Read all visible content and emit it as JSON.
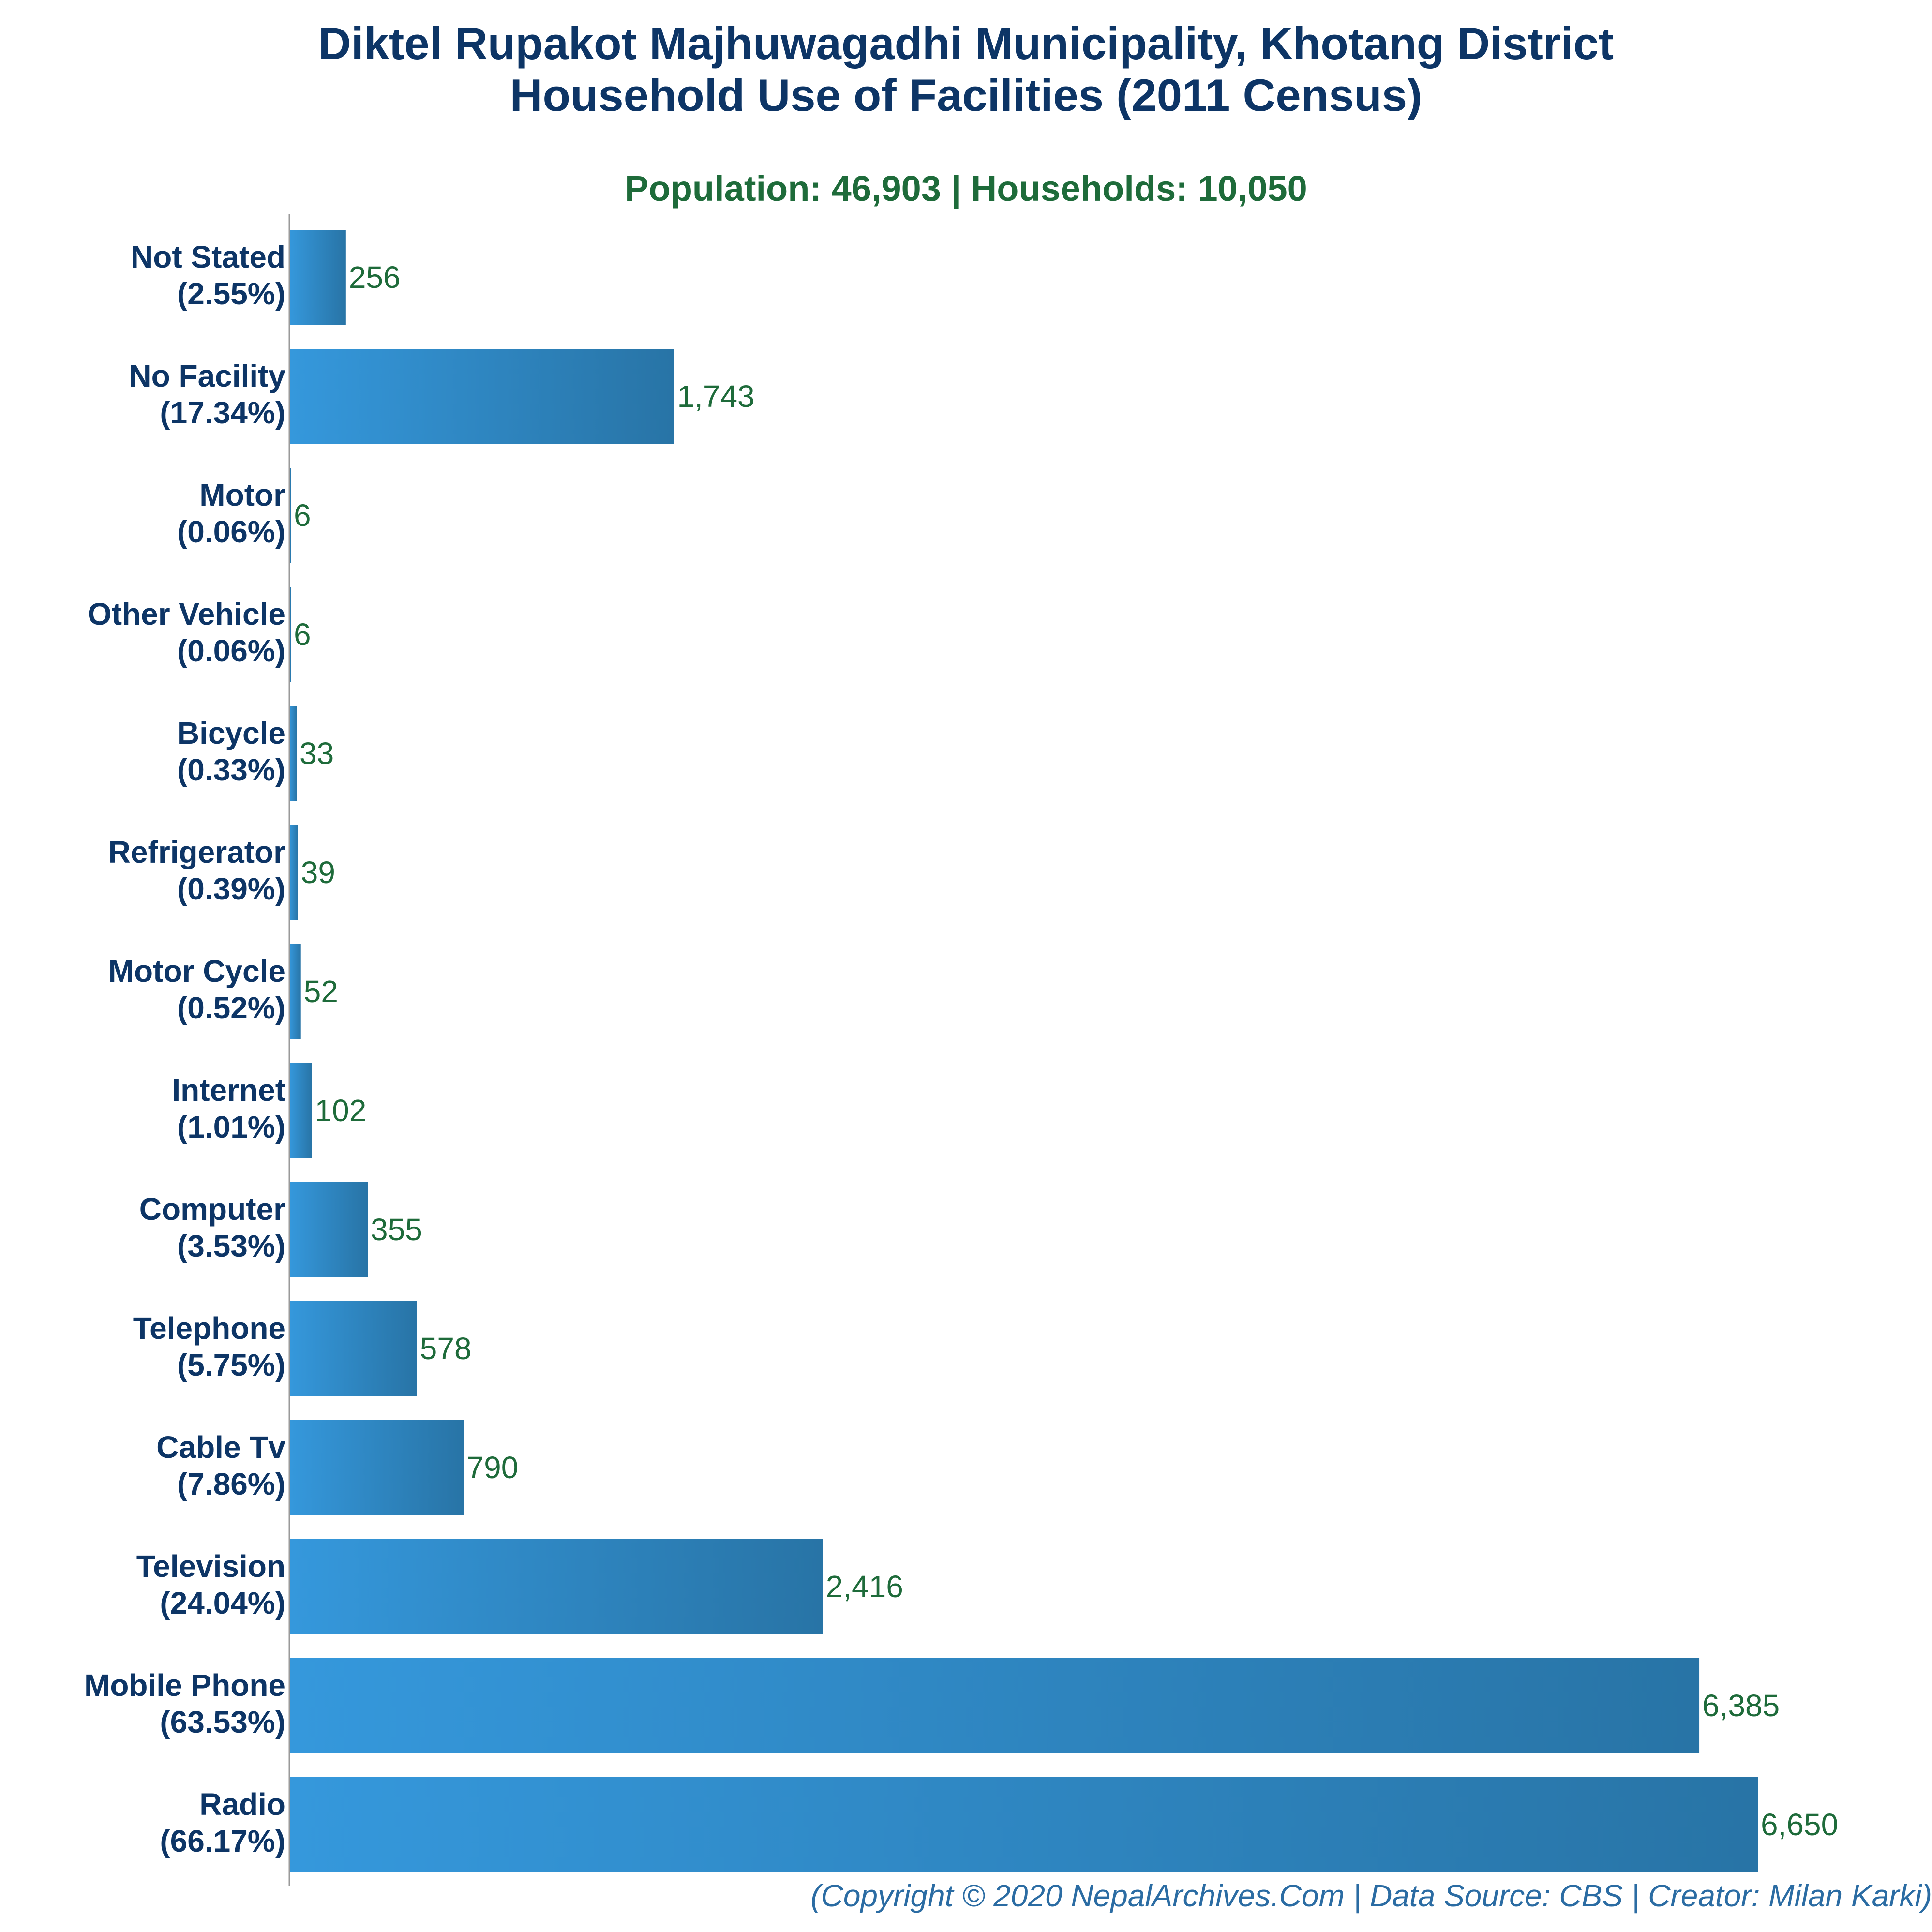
{
  "header": {
    "title_line1": "Diktel Rupakot Majhuwagadhi Municipality, Khotang District",
    "title_line2": "Household Use of Facilities (2011 Census)",
    "subtitle": "Population: 46,903 | Households: 10,050"
  },
  "footer": {
    "credit": "(Copyright © 2020 NepalArchives.Com | Data Source: CBS | Creator: Milan Karki)"
  },
  "colors": {
    "bar_start": "#3598dc",
    "bar_end": "#2874a6",
    "axis": "#999999",
    "title": "#0d3566",
    "value_text": "#1e6b3a"
  },
  "chart_data": {
    "type": "bar",
    "orientation": "horizontal",
    "title": "Diktel Rupakot Majhuwagadhi Municipality, Khotang District Household Use of Facilities (2011 Census)",
    "subtitle": "Population: 46,903 | Households: 10,050",
    "categories": [
      "Not Stated",
      "No Facility",
      "Motor",
      "Other Vehicle",
      "Bicycle",
      "Refrigerator",
      "Motor Cycle",
      "Internet",
      "Computer",
      "Telephone",
      "Cable Tv",
      "Television",
      "Mobile Phone",
      "Radio"
    ],
    "percent_labels": [
      "(2.55%)",
      "(17.34%)",
      "(0.06%)",
      "(0.06%)",
      "(0.33%)",
      "(0.39%)",
      "(0.52%)",
      "(1.01%)",
      "(3.53%)",
      "(5.75%)",
      "(7.86%)",
      "(24.04%)",
      "(63.53%)",
      "(66.17%)"
    ],
    "values": [
      256,
      1743,
      6,
      6,
      33,
      39,
      52,
      102,
      355,
      578,
      790,
      2416,
      6385,
      6650
    ],
    "value_labels": [
      "256",
      "1,743",
      "6",
      "6",
      "33",
      "39",
      "52",
      "102",
      "355",
      "578",
      "790",
      "2,416",
      "6,385",
      "6,650"
    ],
    "xlim": [
      0,
      6650
    ],
    "grid": false,
    "legend": "none"
  }
}
